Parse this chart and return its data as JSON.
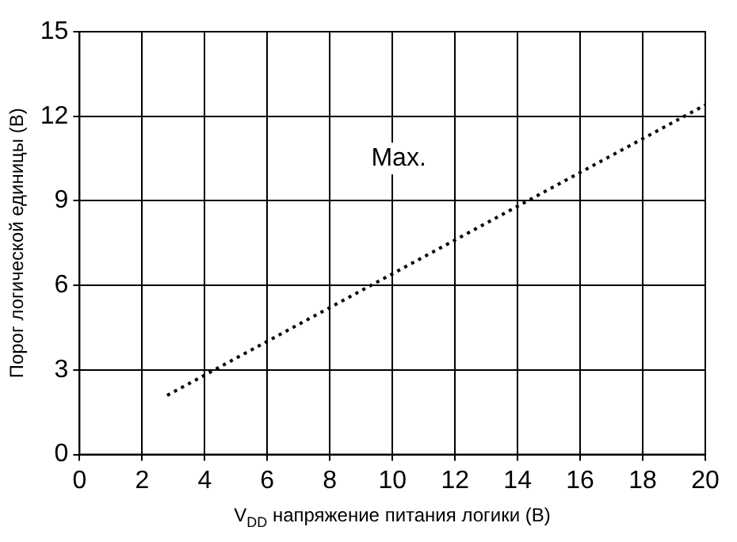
{
  "chart_data": {
    "type": "line",
    "xlabel": "V$_{DD}$ напряжение питания логики (В)",
    "ylabel": "Порог логической единицы (В)",
    "series": [
      {
        "color": "#000000",
        "x": [
          2.8,
          20
        ],
        "values": [
          2.1,
          12.4
        ]
      }
    ],
    "xlim": [
      0,
      20
    ],
    "xticks": [
      0,
      2,
      4,
      6,
      8,
      10,
      12,
      14,
      16,
      18,
      20
    ],
    "ylim": [
      0,
      15
    ],
    "yticks": [
      0,
      3,
      6,
      9,
      12,
      15
    ],
    "grid": true,
    "legend": false,
    "marker": "none",
    "line_style": "dotted",
    "annotations": [
      "Max."
    ]
  }
}
